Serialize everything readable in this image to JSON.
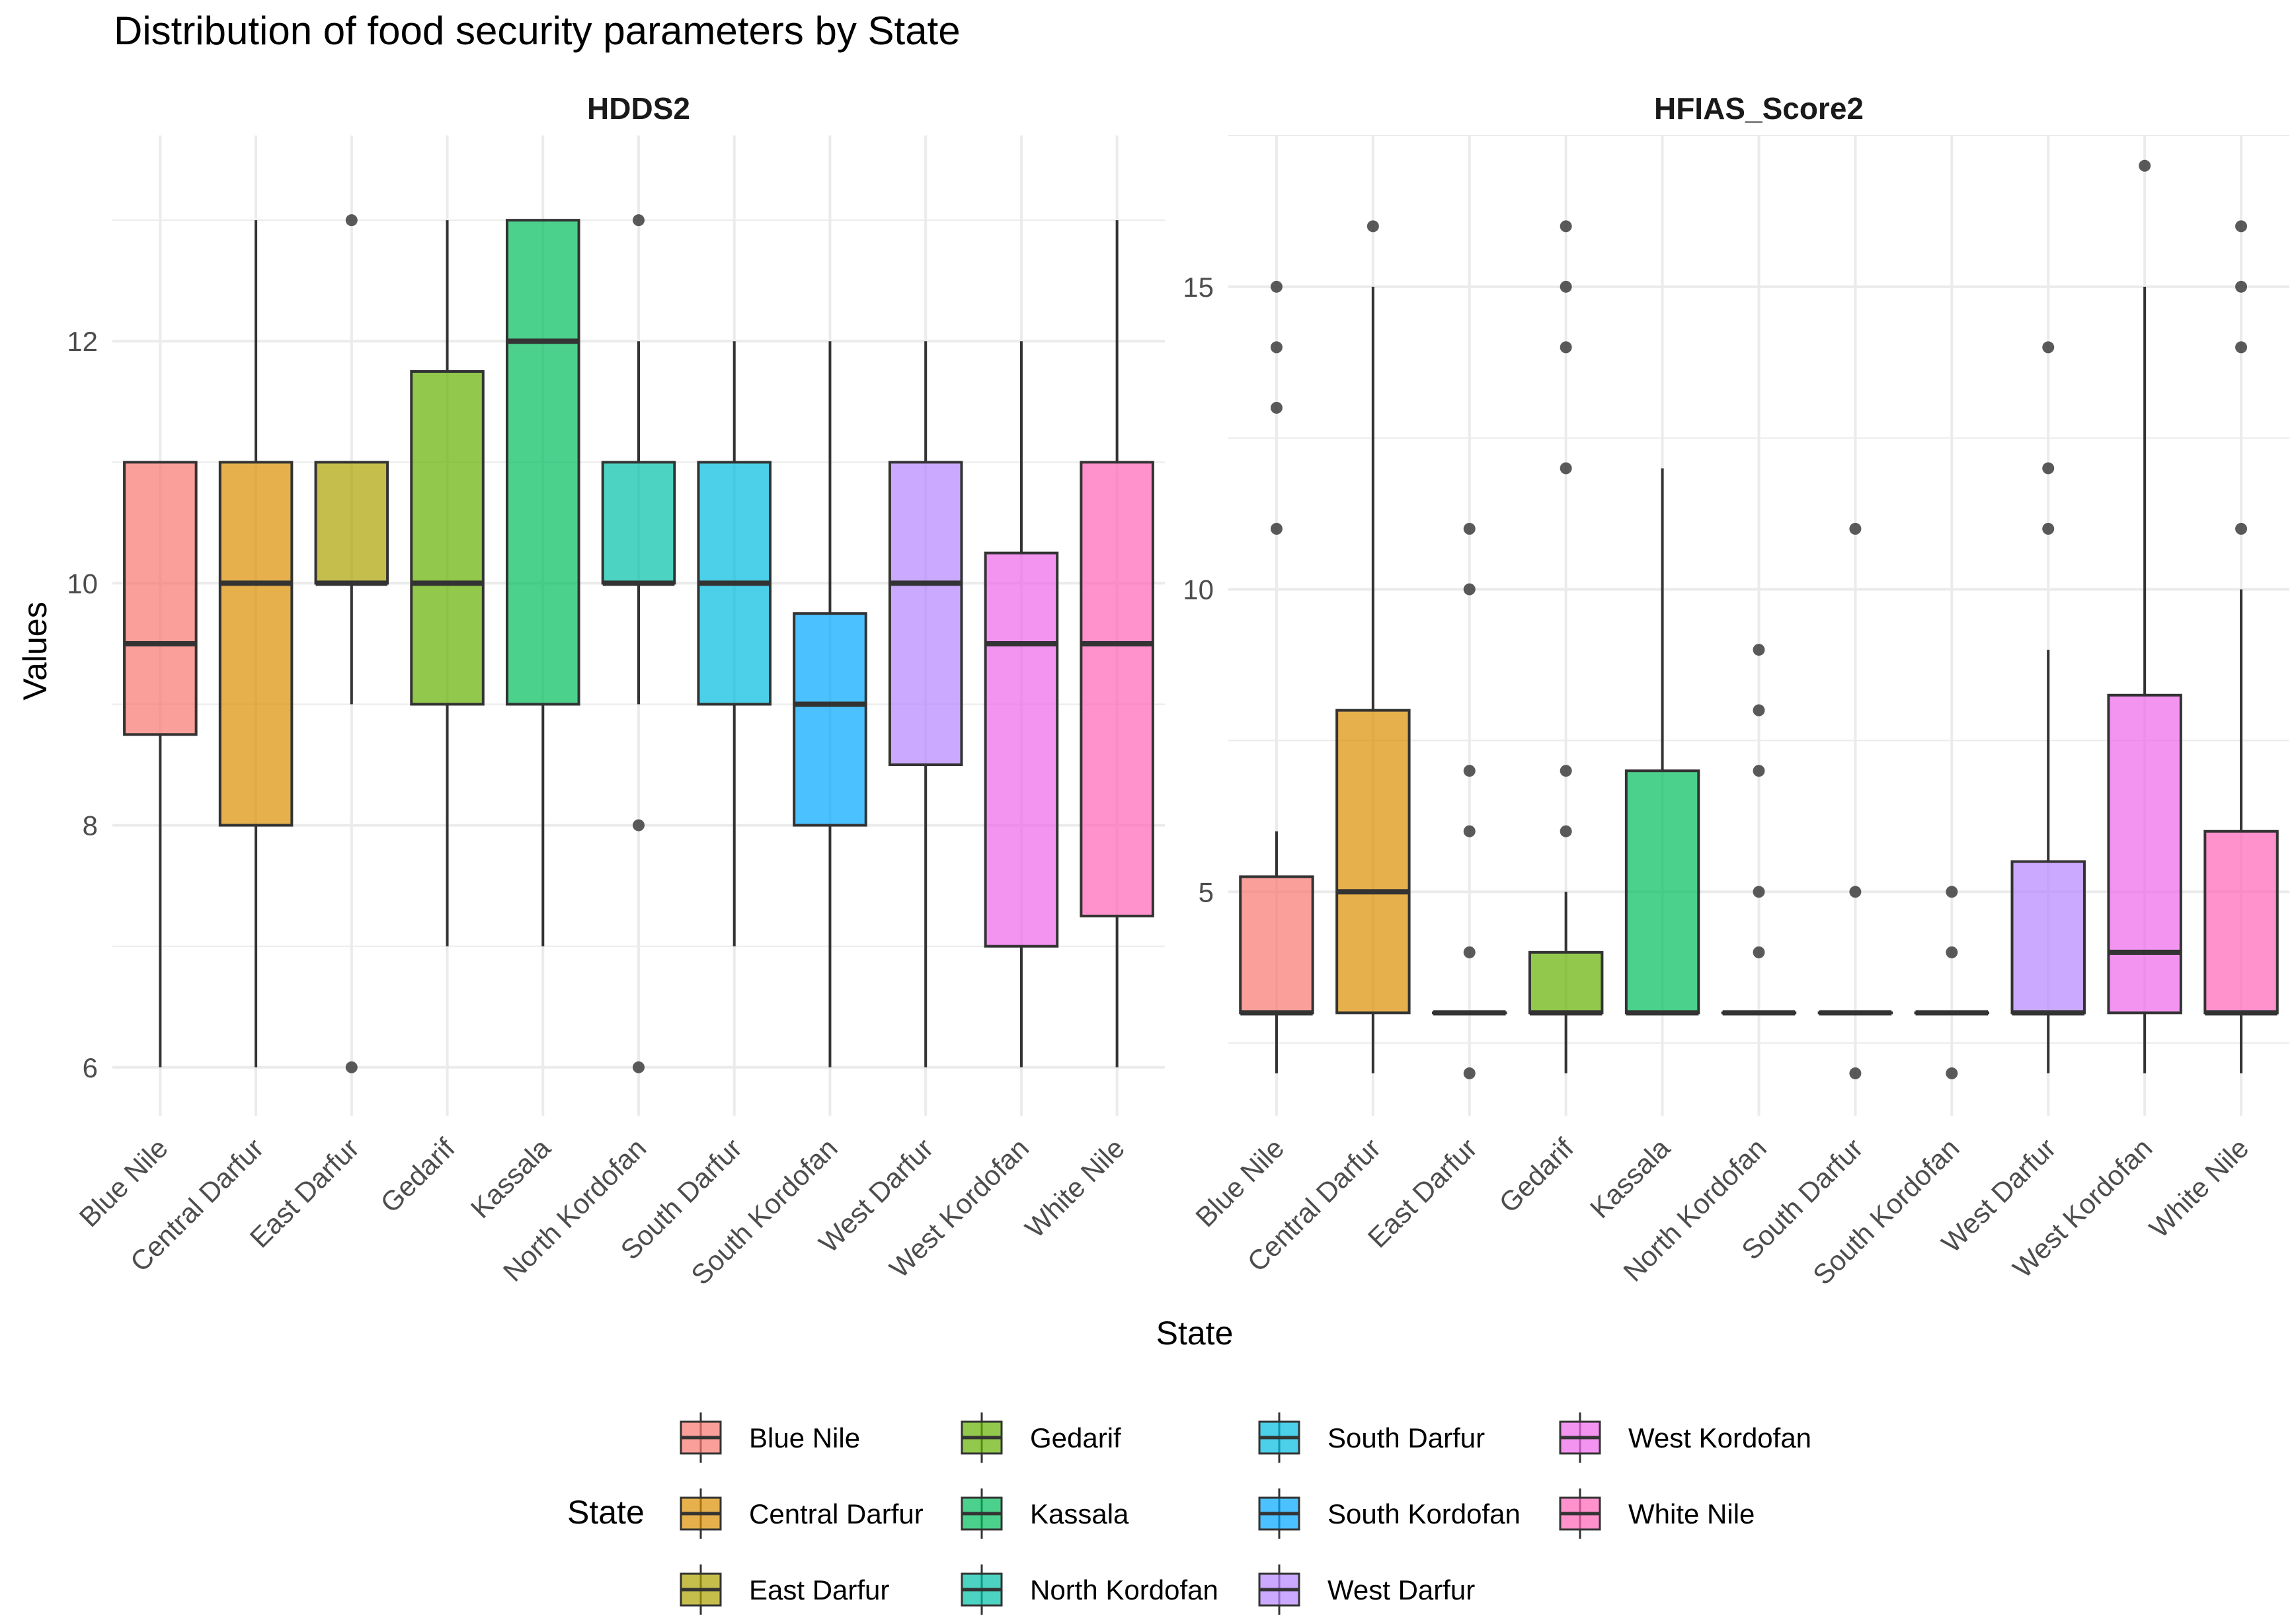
{
  "colors": {
    "grid": "#ebebeb",
    "text_axis": "#4d4d4d",
    "text_title": "#000000",
    "box_stroke": "#333333",
    "outlier": "#3d3d3d",
    "states": {
      "Blue Nile": "#f8766d",
      "Central Darfur": "#db8e00",
      "East Darfur": "#aea200",
      "Gedarif": "#64b200",
      "Kassala": "#00bd5c",
      "North Kordofan": "#00c1a7",
      "South Darfur": "#00bade",
      "South Kordofan": "#00a6ff",
      "West Darfur": "#b385ff",
      "West Kordofan": "#ef67eb",
      "White Nile": "#ff63b6"
    }
  },
  "title": "Distribution of food security parameters by State",
  "xlabel": "State",
  "ylabel": "Values",
  "legend": {
    "title": "State",
    "position": "bottom",
    "columns": [
      [
        "Blue Nile",
        "Central Darfur",
        "East Darfur"
      ],
      [
        "Gedarif",
        "Kassala",
        "North Kordofan"
      ],
      [
        "South Darfur",
        "South Kordofan",
        "West Darfur"
      ],
      [
        "West Kordofan",
        "White Nile"
      ]
    ]
  },
  "chart_data": [
    {
      "type": "boxplot",
      "panel": "HDDS2",
      "categories": [
        "Blue Nile",
        "Central Darfur",
        "East Darfur",
        "Gedarif",
        "Kassala",
        "North Kordofan",
        "South Darfur",
        "South Kordofan",
        "West Darfur",
        "West Kordofan",
        "White Nile"
      ],
      "ylim": [
        5.6,
        13.7
      ],
      "yticks": [
        6,
        8,
        10,
        12
      ],
      "boxes": [
        {
          "state": "Blue Nile",
          "min": 6,
          "q1": 8.75,
          "median": 9.5,
          "q3": 11,
          "max": 11,
          "outliers": []
        },
        {
          "state": "Central Darfur",
          "min": 6,
          "q1": 8,
          "median": 10,
          "q3": 11,
          "max": 13,
          "outliers": []
        },
        {
          "state": "East Darfur",
          "min": 9,
          "q1": 10,
          "median": 10,
          "q3": 11,
          "max": 11,
          "outliers": [
            13,
            6
          ]
        },
        {
          "state": "Gedarif",
          "min": 7,
          "q1": 9,
          "median": 10,
          "q3": 11.75,
          "max": 13,
          "outliers": []
        },
        {
          "state": "Kassala",
          "min": 7,
          "q1": 9,
          "median": 12,
          "q3": 13,
          "max": 13,
          "outliers": []
        },
        {
          "state": "North Kordofan",
          "min": 9,
          "q1": 10,
          "median": 10,
          "q3": 11,
          "max": 12,
          "outliers": [
            13,
            8,
            6
          ]
        },
        {
          "state": "South Darfur",
          "min": 7,
          "q1": 9,
          "median": 10,
          "q3": 11,
          "max": 12,
          "outliers": []
        },
        {
          "state": "South Kordofan",
          "min": 6,
          "q1": 8,
          "median": 9,
          "q3": 9.75,
          "max": 12,
          "outliers": []
        },
        {
          "state": "West Darfur",
          "min": 6,
          "q1": 8.5,
          "median": 10,
          "q3": 11,
          "max": 12,
          "outliers": []
        },
        {
          "state": "West Kordofan",
          "min": 6,
          "q1": 7,
          "median": 9.5,
          "q3": 10.25,
          "max": 12,
          "outliers": []
        },
        {
          "state": "White Nile",
          "min": 6,
          "q1": 7.25,
          "median": 9.5,
          "q3": 11,
          "max": 13,
          "outliers": []
        }
      ]
    },
    {
      "type": "boxplot",
      "panel": "HFIAS_Score2",
      "categories": [
        "Blue Nile",
        "Central Darfur",
        "East Darfur",
        "Gedarif",
        "Kassala",
        "North Kordofan",
        "South Darfur",
        "South Kordofan",
        "West Darfur",
        "West Kordofan",
        "White Nile"
      ],
      "ylim": [
        1.3,
        17.5
      ],
      "yticks": [
        5,
        10,
        15
      ],
      "boxes": [
        {
          "state": "Blue Nile",
          "min": 2,
          "q1": 3,
          "median": 3,
          "q3": 5.25,
          "max": 6,
          "outliers": [
            15,
            14,
            13,
            11
          ]
        },
        {
          "state": "Central Darfur",
          "min": 2,
          "q1": 3,
          "median": 5,
          "q3": 8,
          "max": 15,
          "outliers": [
            16
          ]
        },
        {
          "state": "East Darfur",
          "min": 3,
          "q1": 3,
          "median": 3,
          "q3": 3,
          "max": 3,
          "outliers": [
            11,
            10,
            7,
            6,
            4,
            2
          ]
        },
        {
          "state": "Gedarif",
          "min": 2,
          "q1": 3,
          "median": 3,
          "q3": 4,
          "max": 5,
          "outliers": [
            16,
            15,
            14,
            12,
            7,
            6
          ]
        },
        {
          "state": "Kassala",
          "min": 3,
          "q1": 3,
          "median": 3,
          "q3": 7,
          "max": 12,
          "outliers": []
        },
        {
          "state": "North Kordofan",
          "min": 3,
          "q1": 3,
          "median": 3,
          "q3": 3,
          "max": 3,
          "outliers": [
            9,
            8,
            7,
            5,
            4
          ]
        },
        {
          "state": "South Darfur",
          "min": 3,
          "q1": 3,
          "median": 3,
          "q3": 3,
          "max": 3,
          "outliers": [
            11,
            5,
            2
          ]
        },
        {
          "state": "South Kordofan",
          "min": 3,
          "q1": 3,
          "median": 3,
          "q3": 3,
          "max": 3,
          "outliers": [
            5,
            4,
            2
          ]
        },
        {
          "state": "West Darfur",
          "min": 2,
          "q1": 3,
          "median": 3,
          "q3": 5.5,
          "max": 9,
          "outliers": [
            14,
            12,
            11
          ]
        },
        {
          "state": "West Kordofan",
          "min": 2,
          "q1": 3,
          "median": 4,
          "q3": 8.25,
          "max": 15,
          "outliers": [
            17
          ]
        },
        {
          "state": "White Nile",
          "min": 2,
          "q1": 3,
          "median": 3,
          "q3": 6,
          "max": 10,
          "outliers": [
            16,
            15,
            14,
            11
          ]
        }
      ]
    }
  ]
}
